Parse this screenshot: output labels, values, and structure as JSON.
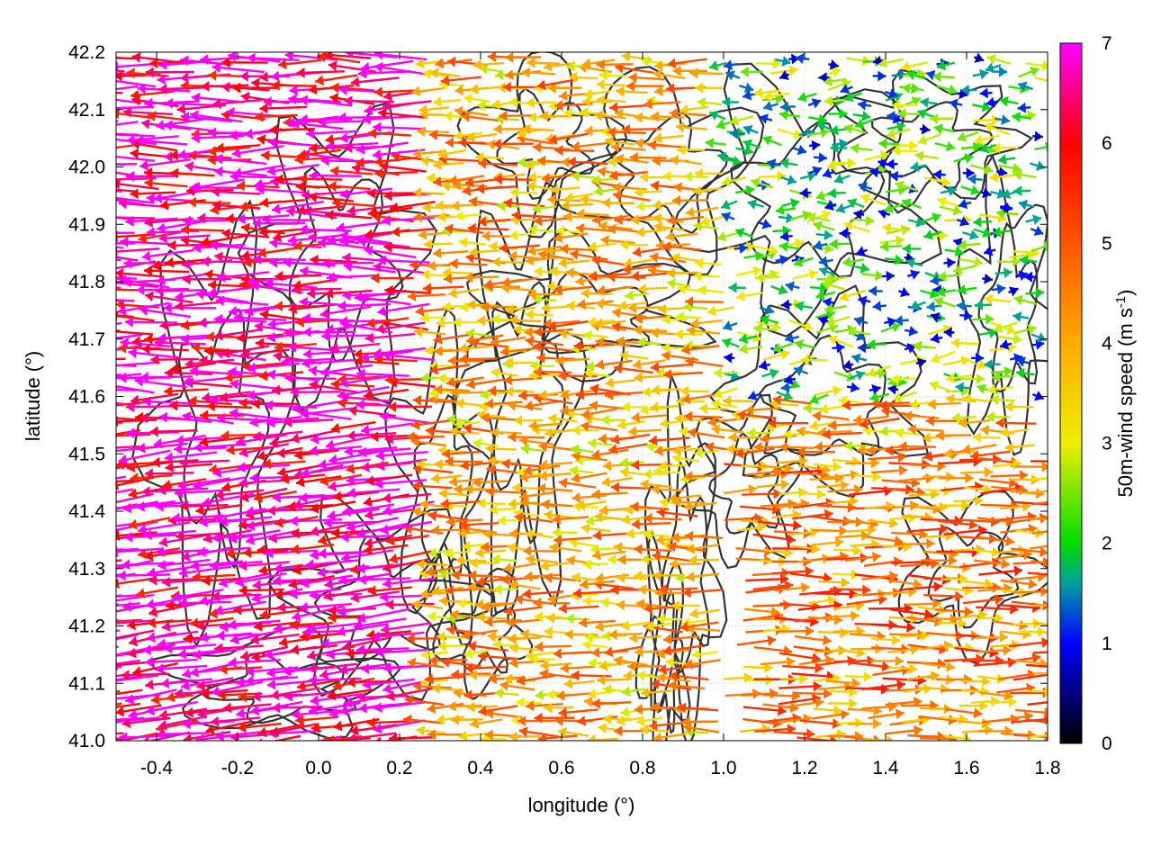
{
  "chart_data": {
    "type": "vector-field",
    "description_free": true,
    "xlabel": "longitude (°)",
    "ylabel": "latitude (°)",
    "colorbar_label": "50m-wind speed (m s-1)",
    "colorbar_label_parts": {
      "main": "50m-wind speed (m s",
      "sup": "-1",
      "end": ")"
    },
    "xlim": [
      -0.5,
      1.8
    ],
    "ylim": [
      41.0,
      42.2
    ],
    "x_ticks": [
      -0.4,
      -0.2,
      0.0,
      0.2,
      0.4,
      0.6,
      0.8,
      1.0,
      1.2,
      1.4,
      1.6,
      1.8
    ],
    "x_tick_labels": [
      "-0.4",
      "-0.2",
      "0.0",
      "0.2",
      "0.4",
      "0.6",
      "0.8",
      "1.0",
      "1.2",
      "1.4",
      "1.6",
      "1.8"
    ],
    "y_ticks": [
      41.0,
      41.1,
      41.2,
      41.3,
      41.4,
      41.5,
      41.6,
      41.7,
      41.8,
      41.9,
      42.0,
      42.1,
      42.2
    ],
    "y_tick_labels": [
      "41.0",
      "41.1",
      "41.2",
      "41.3",
      "41.4",
      "41.5",
      "41.6",
      "41.7",
      "41.8",
      "41.9",
      "42.0",
      "42.1",
      "42.2"
    ],
    "colorbar_range": [
      0,
      7
    ],
    "colorbar_ticks": [
      0,
      1,
      2,
      3,
      4,
      5,
      6,
      7
    ],
    "colorbar_tick_labels": [
      "0",
      "1",
      "2",
      "3",
      "4",
      "5",
      "6",
      "7"
    ],
    "colormap_stops": [
      {
        "value": 0,
        "color": "#000000"
      },
      {
        "value": 1,
        "color": "#0000ff"
      },
      {
        "value": 1.6,
        "color": "#00a0a0"
      },
      {
        "value": 2,
        "color": "#00dd00"
      },
      {
        "value": 3,
        "color": "#eeee00"
      },
      {
        "value": 4,
        "color": "#ffaa00"
      },
      {
        "value": 5,
        "color": "#ff5500"
      },
      {
        "value": 6,
        "color": "#ff0000"
      },
      {
        "value": 7,
        "color": "#ff00ff"
      }
    ],
    "grid": true,
    "contour_color": "#333333",
    "wind_regions": [
      {
        "name": "west-strong",
        "lon": [
          -0.5,
          0.3
        ],
        "lat": [
          41.0,
          42.2
        ],
        "speed": 6.8,
        "direction": "westward"
      },
      {
        "name": "central-mixed",
        "lon": [
          0.3,
          1.0
        ],
        "lat": [
          41.3,
          42.2
        ],
        "speed": 4.0,
        "direction": "westward"
      },
      {
        "name": "north-east-calm",
        "lon": [
          1.0,
          1.8
        ],
        "lat": [
          41.6,
          42.2
        ],
        "speed": 2.0,
        "direction": "variable"
      },
      {
        "name": "south-east-eastward",
        "lon": [
          1.0,
          1.8
        ],
        "lat": [
          41.0,
          41.5
        ],
        "speed": 4.5,
        "direction": "eastward"
      }
    ]
  }
}
